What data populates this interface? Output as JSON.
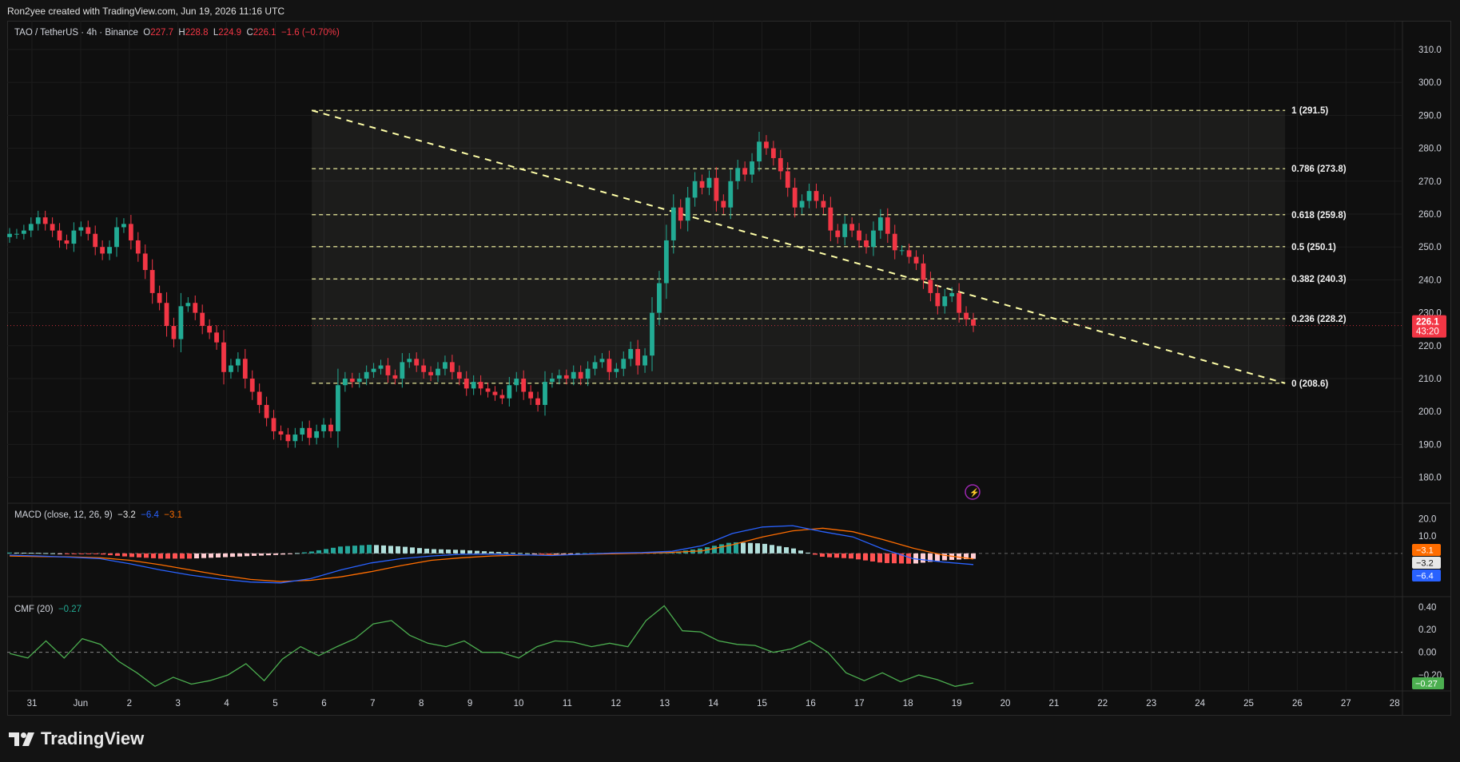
{
  "header": {
    "credit": "Ron2yee created with TradingView.com, Jun 19, 2026 11:16 UTC"
  },
  "symbol_legend": {
    "title": "TAO / TetherUS · 4h · Binance",
    "o_label": "O",
    "o": "227.7",
    "h_label": "H",
    "h": "228.8",
    "l_label": "L",
    "l": "224.9",
    "c_label": "C",
    "c": "226.1",
    "change": "−1.6 (−0.70%)"
  },
  "macd_legend": {
    "title": "MACD (close, 12, 26, 9)",
    "v1": "−3.2",
    "v2": "−6.4",
    "v3": "−3.1"
  },
  "cmf_legend": {
    "title": "CMF (20)",
    "v": "−0.27"
  },
  "price_badge": {
    "price": "226.1",
    "countdown": "43:20"
  },
  "macd_badges": [
    "−3.1",
    "−3.2",
    "−6.4"
  ],
  "cmf_badge": "−0.27",
  "brand": "TradingView",
  "colors": {
    "up": "#22ab94",
    "down": "#f23645",
    "macd": "#2962ff",
    "signal": "#ff6d00",
    "cmf": "#4caf50",
    "fib": "#ffffa8"
  },
  "chart_data": [
    {
      "type": "candlestick",
      "title": "TAO / TetherUS · 4h · Binance",
      "x_ticks": [
        "31",
        "Jun",
        "2",
        "3",
        "4",
        "5",
        "6",
        "7",
        "8",
        "9",
        "10",
        "11",
        "12",
        "13",
        "14",
        "15",
        "16",
        "17",
        "18",
        "19",
        "20",
        "21",
        "22",
        "23",
        "24",
        "25",
        "26",
        "27",
        "28"
      ],
      "y_ticks": [
        "310.0",
        "300.0",
        "290.0",
        "280.0",
        "270.0",
        "260.0",
        "250.0",
        "240.0",
        "230.0",
        "220.0",
        "210.0",
        "200.0",
        "190.0",
        "180.0"
      ],
      "ylim": [
        171,
        316
      ],
      "last_price": 226.1,
      "fibonacci": [
        {
          "label": "1 (291.5)",
          "value": 291.5
        },
        {
          "label": "0.786 (273.8)",
          "value": 273.8
        },
        {
          "label": "0.618 (259.8)",
          "value": 259.8
        },
        {
          "label": "0.5 (250.1)",
          "value": 250.1
        },
        {
          "label": "0.382 (240.3)",
          "value": 240.3
        },
        {
          "label": "0.236 (228.2)",
          "value": 228.2
        },
        {
          "label": "0 (208.6)",
          "value": 208.6
        }
      ],
      "trendline": {
        "from": [
          5.75,
          291.5
        ],
        "to": [
          25.75,
          208.6
        ]
      },
      "closes": [
        254,
        254,
        255,
        257,
        259,
        257,
        255,
        252,
        251,
        255,
        256,
        254,
        250,
        248,
        250,
        256,
        257,
        252,
        248,
        243,
        236,
        233,
        226,
        222,
        232,
        233,
        230,
        226,
        224,
        221,
        212,
        214,
        216,
        210,
        206,
        202,
        198,
        194,
        193,
        191,
        193,
        195,
        192,
        194,
        196,
        194,
        208,
        210,
        209,
        210,
        212,
        213,
        214,
        211,
        210,
        215,
        216,
        214,
        212,
        211,
        213,
        215,
        212,
        210,
        207,
        209,
        207,
        206,
        205,
        204,
        208,
        210,
        206,
        204,
        202,
        209,
        210,
        211,
        210,
        212,
        210,
        213,
        215,
        216,
        212,
        213,
        216,
        219,
        214,
        217,
        230,
        239,
        252,
        262,
        258,
        265,
        270,
        268,
        271,
        264,
        262,
        270,
        274,
        272,
        276,
        282,
        280,
        277,
        273,
        268,
        262,
        264,
        267,
        264,
        262,
        255,
        253,
        257,
        255,
        252,
        250,
        255,
        259,
        254,
        249,
        249,
        247,
        245,
        240,
        236,
        232,
        235,
        236,
        230,
        228,
        226.1
      ],
      "macd": {
        "macd": [
          -1.0,
          -1.5,
          -2.2,
          -3.0,
          -6.0,
          -9.5,
          -12.5,
          -14.8,
          -16.5,
          -17.0,
          -14.5,
          -9.5,
          -5.5,
          -3.0,
          -1.5,
          -0.5,
          -0.5,
          -0.8,
          -1.2,
          -0.5,
          0.2,
          0.5,
          1.2,
          4.5,
          11.5,
          15.2,
          16.0,
          12.5,
          9.5,
          2.5,
          -3.0,
          -5.0,
          -6.4
        ],
        "signal": [
          -1.5,
          -1.8,
          -2.0,
          -2.5,
          -4.0,
          -6.5,
          -9.5,
          -12.5,
          -15.0,
          -16.2,
          -15.5,
          -13.5,
          -10.5,
          -7.0,
          -4.0,
          -2.5,
          -1.5,
          -1.0,
          -0.8,
          -0.6,
          -0.2,
          0.1,
          0.6,
          1.5,
          5.0,
          9.5,
          13.0,
          14.5,
          12.5,
          8.0,
          3.0,
          -1.0,
          -3.2
        ],
        "hist": [
          0.5,
          0.3,
          -0.2,
          -0.5,
          -2.0,
          -3.0,
          -3.0,
          -2.3,
          -1.5,
          -0.8,
          1.0,
          4.0,
          5.0,
          4.0,
          2.5,
          2.0,
          1.0,
          0.2,
          -0.4,
          0.1,
          0.4,
          0.4,
          0.6,
          3.0,
          6.5,
          5.7,
          3.0,
          -2.0,
          -3.0,
          -5.5,
          -6.0,
          -4.0,
          -3.1
        ],
        "ylim": [
          -24,
          28
        ]
      },
      "cmf": {
        "values": [
          -0.01,
          -0.05,
          0.1,
          -0.05,
          0.12,
          0.07,
          -0.08,
          -0.18,
          -0.3,
          -0.22,
          -0.28,
          -0.25,
          -0.2,
          -0.1,
          -0.25,
          -0.06,
          0.05,
          -0.03,
          0.05,
          0.12,
          0.25,
          0.28,
          0.15,
          0.08,
          0.05,
          0.1,
          0.0,
          0.0,
          -0.05,
          0.05,
          0.1,
          0.09,
          0.05,
          0.08,
          0.05,
          0.28,
          0.41,
          0.19,
          0.18,
          0.1,
          0.07,
          0.06,
          0.0,
          0.03,
          0.1,
          0.0,
          -0.18,
          -0.25,
          -0.18,
          -0.26,
          -0.2,
          -0.24,
          -0.3,
          -0.27
        ],
        "ticks": [
          "0.40",
          "0.20",
          "0.00",
          "−0.20"
        ],
        "ylim": [
          -0.34,
          0.49
        ]
      }
    }
  ]
}
